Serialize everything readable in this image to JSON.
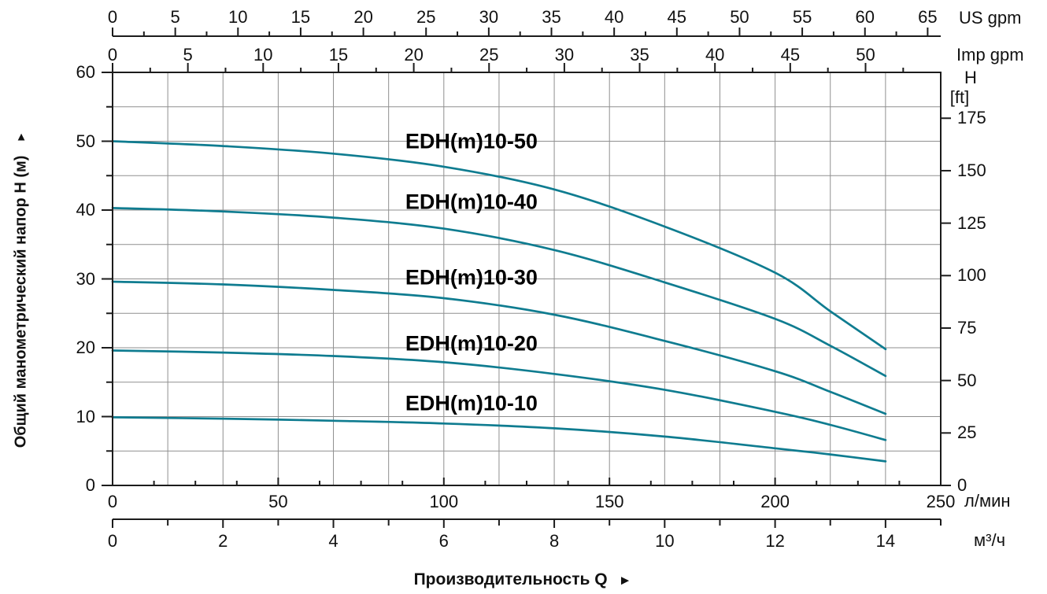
{
  "chart_data": {
    "type": "line",
    "curve_color": "#0f7c90",
    "grid_color": "#8f8f8f",
    "axis_color": "#1c1c1c",
    "titles": {
      "y_axis": "Общий манометрический напор H (м)",
      "x_axis": "Производительность Q",
      "up_arrow": "▲",
      "right_arrow": "►"
    },
    "units": {
      "top_primary": "US gpm",
      "top_secondary": "Imp gpm",
      "right_top": "H",
      "right_unit": "[ft]",
      "bottom_primary": "л/мин",
      "bottom_secondary": "м³/ч"
    },
    "axes": {
      "us_gpm": {
        "min": 0,
        "max": 65,
        "label_step": 5,
        "minor_step": 2.5,
        "labels": [
          0,
          5,
          10,
          15,
          20,
          25,
          30,
          35,
          40,
          45,
          50,
          55,
          60,
          65
        ]
      },
      "imp_gpm": {
        "min": 0,
        "max": 50,
        "label_step": 5,
        "minor_step": 2.5,
        "labels": [
          0,
          5,
          10,
          15,
          20,
          25,
          30,
          35,
          40,
          45,
          50
        ]
      },
      "h_m": {
        "min": 0,
        "max": 60,
        "label_step": 10,
        "minor_step": 5,
        "labels": [
          0,
          10,
          20,
          30,
          40,
          50,
          60
        ]
      },
      "h_ft": {
        "min": 0,
        "max": 175,
        "label_step": 25,
        "minor_step": 25,
        "labels": [
          0,
          25,
          50,
          75,
          100,
          125,
          150,
          175
        ]
      },
      "l_min": {
        "min": 0,
        "max": 250,
        "label_step": 50,
        "minor_step": 12.5,
        "labels": [
          0,
          50,
          100,
          150,
          200,
          250
        ]
      },
      "m3_h": {
        "min": 0,
        "max": 14,
        "label_step": 2,
        "minor_step": 1,
        "labels": [
          0,
          2,
          4,
          6,
          8,
          10,
          12,
          14
        ]
      }
    },
    "x_values_m3h": [
      0,
      2,
      4,
      6,
      8,
      10,
      12,
      13,
      14
    ],
    "series": [
      {
        "name": "EDH(m)10-50",
        "label_h": 49.9,
        "values": [
          50.0,
          49.3,
          48.2,
          46.3,
          43.0,
          37.6,
          30.9,
          25.3,
          19.8
        ]
      },
      {
        "name": "EDH(m)10-40",
        "label_h": 41.1,
        "values": [
          40.3,
          39.8,
          38.9,
          37.3,
          34.2,
          29.5,
          24.2,
          20.3,
          15.9
        ]
      },
      {
        "name": "EDH(m)10-30",
        "label_h": 30.2,
        "values": [
          29.6,
          29.2,
          28.4,
          27.2,
          24.8,
          21.0,
          16.6,
          13.6,
          10.4
        ]
      },
      {
        "name": "EDH(m)10-20",
        "label_h": 20.6,
        "values": [
          19.6,
          19.3,
          18.8,
          17.9,
          16.2,
          13.9,
          10.7,
          8.8,
          6.6
        ]
      },
      {
        "name": "EDH(m)10-10",
        "label_h": 11.9,
        "values": [
          9.9,
          9.7,
          9.4,
          9.0,
          8.3,
          7.1,
          5.4,
          4.5,
          3.5
        ]
      }
    ],
    "label_q_center_m3h": 6.5
  }
}
